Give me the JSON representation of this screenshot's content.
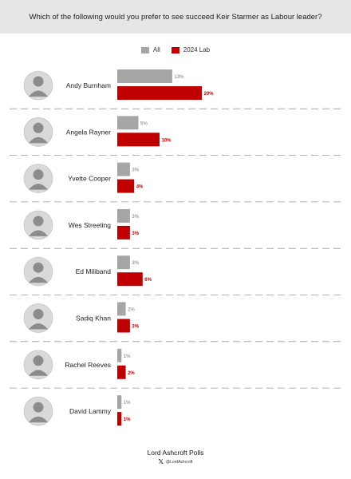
{
  "question": "Which of the following would you prefer to see succeed Keir Starmer as Labour leader?",
  "footer": {
    "brand": "Lord Ashcroft Polls",
    "handle": "@LordAshcroft"
  },
  "colors": {
    "all": "#a6a6a6",
    "lab": "#c00000"
  },
  "icons": {
    "social": "x-logo-icon"
  },
  "chart_data": {
    "type": "bar",
    "orientation": "horizontal",
    "categories": [
      "Andy Burnham",
      "Angela Rayner",
      "Yvette Cooper",
      "Wes Streeting",
      "Ed Miliband",
      "Sadiq Khan",
      "Rachel Reeves",
      "David Lammy"
    ],
    "series": [
      {
        "name": "All",
        "values": [
          13,
          5,
          3,
          3,
          3,
          2,
          1,
          1
        ],
        "labels": [
          "13%",
          "5%",
          "3%",
          "3%",
          "3%",
          "2%",
          "1%",
          "1%"
        ]
      },
      {
        "name": "2024 Lab",
        "values": [
          20,
          10,
          4,
          3,
          6,
          3,
          2,
          1
        ],
        "labels": [
          "20%",
          "10%",
          "4%",
          "3%",
          "6%",
          "3%",
          "2%",
          "1%"
        ]
      }
    ],
    "legend_position": "top",
    "xlim": [
      0,
      20
    ],
    "grid": false
  }
}
